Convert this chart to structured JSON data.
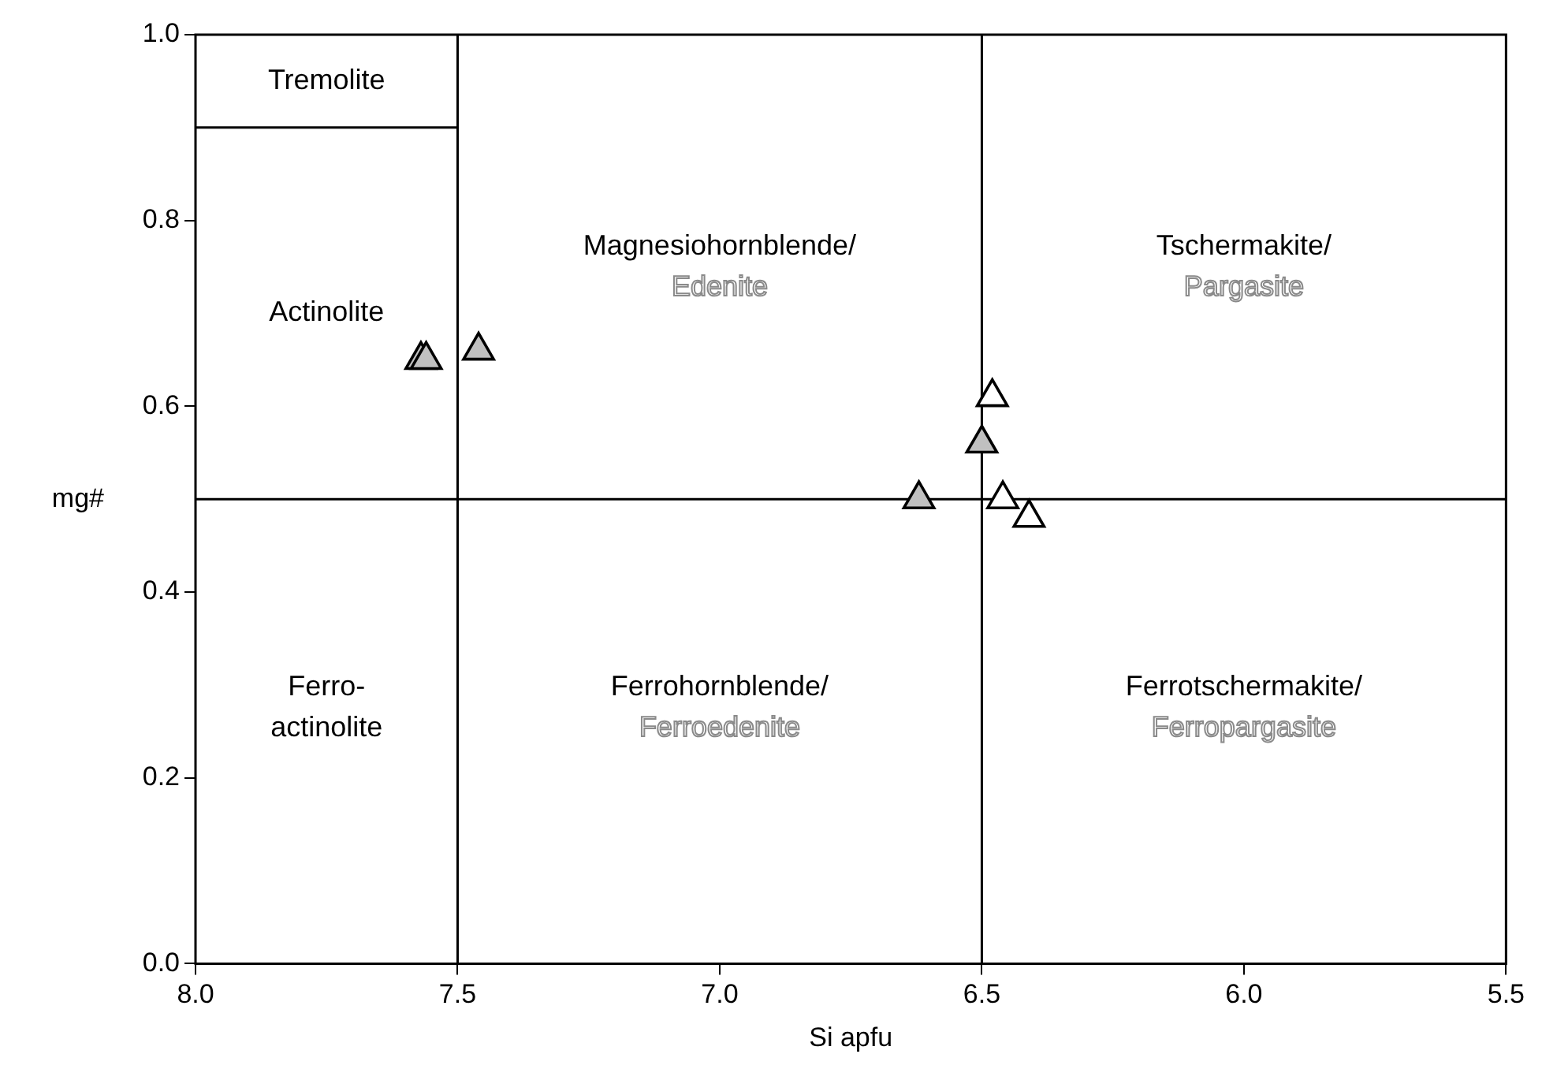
{
  "chart_data": {
    "type": "scatter",
    "xlabel": "Si apfu",
    "ylabel": "mg#",
    "xlim": [
      8.0,
      5.5
    ],
    "ylim": [
      0.0,
      1.0
    ],
    "xticks": [
      {
        "value": 8,
        "label": "8.0"
      },
      {
        "value": 7.5,
        "label": "7.5"
      },
      {
        "value": 7,
        "label": "7.0"
      },
      {
        "value": 6.5,
        "label": "6.5"
      },
      {
        "value": 6,
        "label": "6.0"
      },
      {
        "value": 5.5,
        "label": "5.5"
      }
    ],
    "yticks": [
      {
        "value": 0,
        "label": "0.0"
      },
      {
        "value": 0.2,
        "label": "0.2"
      },
      {
        "value": 0.4,
        "label": "0.4"
      },
      {
        "value": 0.6,
        "label": "0.6"
      },
      {
        "value": 0.8,
        "label": "0.8"
      },
      {
        "value": 1,
        "label": "1.0"
      }
    ],
    "grid": false,
    "legend": false,
    "series": [
      {
        "type": "scatter",
        "color": "#c0c0c0",
        "marker": "triangle",
        "x": [
          7.57,
          7.56,
          7.46,
          6.62,
          6.5
        ],
        "values": [
          0.65,
          0.65,
          0.66,
          0.5,
          0.56
        ]
      },
      {
        "type": "scatter",
        "color": "#ffffff",
        "marker": "triangle",
        "x": [
          6.48,
          6.46,
          6.41
        ],
        "values": [
          0.61,
          0.5,
          0.48
        ]
      },
      {
        "type": "line",
        "color": "#000000",
        "marker": "none",
        "x": [
          8.0,
          7.5
        ],
        "values": [
          0.9,
          0.9
        ]
      }
    ],
    "ref_lines": [
      {
        "axis": "x",
        "value": 7.5,
        "color": "#000000"
      },
      {
        "axis": "x",
        "value": 6.5,
        "color": "#000000"
      },
      {
        "axis": "y",
        "value": 0.5,
        "color": "#000000"
      }
    ],
    "annotations": [
      "Tremolite",
      "Actinolite",
      "Magnesiohornblende/\nEdenite",
      "Tschermakite/\nPargasite",
      "Ferro-\nactinolite",
      "Ferrohornblende/\nFerroedenite",
      "Ferrotschermakite/\nFerropargasite"
    ]
  }
}
